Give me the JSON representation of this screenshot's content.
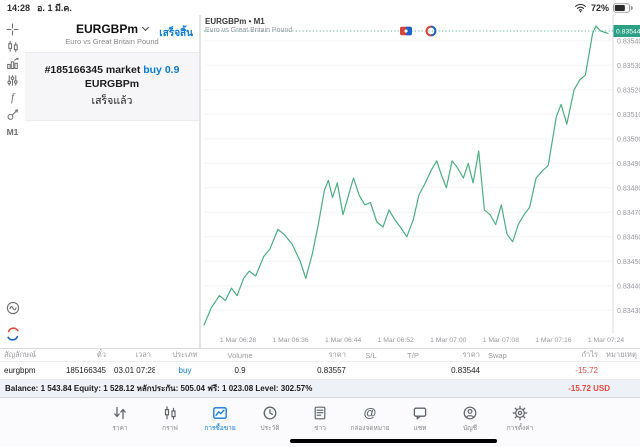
{
  "statusbar": {
    "time": "14:28",
    "date": "อ. 1 มี.ค.",
    "battery": "72%"
  },
  "sidebar": {
    "timeframe": "M1"
  },
  "panel": {
    "title": "EURGBPm",
    "subtitle": "Euro vs Great Britain Pound",
    "done_button": "เสร็จสิ้น",
    "order": {
      "line1_prefix": "#185166345 market ",
      "line1_action": "buy 0.9",
      "line2": "EURGBPm",
      "line3": "เสร็จแล้ว"
    }
  },
  "chart": {
    "symbol_period": "EURGBPm • M1",
    "subtitle": "Euro vs Great Britain Pound",
    "current_price_label": "0.83544"
  },
  "chart_data": {
    "type": "line",
    "title": "EURGBPm M1",
    "x_labels": [
      "1 Mar 06:28",
      "1 Mar 06:36",
      "1 Mar 06:44",
      "1 Mar 06:52",
      "1 Mar 07:00",
      "1 Mar 07:08",
      "1 Mar 07:16",
      "1 Mar 07:24"
    ],
    "y_ticks": [
      "0.83540",
      "0.83530",
      "0.83520",
      "0.83510",
      "0.83500",
      "0.83490",
      "0.83480",
      "0.83470",
      "0.83460",
      "0.83450",
      "0.83440",
      "0.83430"
    ],
    "current_price": 0.83544,
    "ylim": [
      0.83424,
      0.83547
    ],
    "line_color": "#4cae82",
    "badge_color": "#2aa184",
    "points": [
      [
        0.0,
        0.83424
      ],
      [
        0.018,
        0.83431
      ],
      [
        0.038,
        0.83436
      ],
      [
        0.053,
        0.83434
      ],
      [
        0.068,
        0.83439
      ],
      [
        0.082,
        0.83436
      ],
      [
        0.098,
        0.83443
      ],
      [
        0.112,
        0.83446
      ],
      [
        0.128,
        0.83444
      ],
      [
        0.148,
        0.83452
      ],
      [
        0.163,
        0.83455
      ],
      [
        0.183,
        0.83463
      ],
      [
        0.198,
        0.83461
      ],
      [
        0.218,
        0.83457
      ],
      [
        0.238,
        0.8345
      ],
      [
        0.252,
        0.83443
      ],
      [
        0.268,
        0.83453
      ],
      [
        0.283,
        0.83465
      ],
      [
        0.298,
        0.83479
      ],
      [
        0.308,
        0.83483
      ],
      [
        0.318,
        0.83476
      ],
      [
        0.33,
        0.83482
      ],
      [
        0.344,
        0.83469
      ],
      [
        0.358,
        0.83477
      ],
      [
        0.37,
        0.83484
      ],
      [
        0.384,
        0.83477
      ],
      [
        0.398,
        0.83473
      ],
      [
        0.412,
        0.83474
      ],
      [
        0.428,
        0.83466
      ],
      [
        0.443,
        0.83464
      ],
      [
        0.458,
        0.83471
      ],
      [
        0.472,
        0.83467
      ],
      [
        0.486,
        0.83464
      ],
      [
        0.502,
        0.8346
      ],
      [
        0.518,
        0.83467
      ],
      [
        0.532,
        0.83477
      ],
      [
        0.548,
        0.83482
      ],
      [
        0.562,
        0.83487
      ],
      [
        0.576,
        0.83491
      ],
      [
        0.588,
        0.83485
      ],
      [
        0.6,
        0.8348
      ],
      [
        0.614,
        0.83491
      ],
      [
        0.628,
        0.83488
      ],
      [
        0.642,
        0.83484
      ],
      [
        0.654,
        0.8349
      ],
      [
        0.666,
        0.83482
      ],
      [
        0.68,
        0.83495
      ],
      [
        0.694,
        0.83471
      ],
      [
        0.708,
        0.83469
      ],
      [
        0.722,
        0.83465
      ],
      [
        0.736,
        0.83473
      ],
      [
        0.75,
        0.83461
      ],
      [
        0.764,
        0.83458
      ],
      [
        0.778,
        0.83465
      ],
      [
        0.792,
        0.83469
      ],
      [
        0.806,
        0.83472
      ],
      [
        0.822,
        0.83484
      ],
      [
        0.838,
        0.83487
      ],
      [
        0.852,
        0.83489
      ],
      [
        0.872,
        0.83509
      ],
      [
        0.884,
        0.83514
      ],
      [
        0.898,
        0.83506
      ],
      [
        0.916,
        0.8352
      ],
      [
        0.93,
        0.83524
      ],
      [
        0.944,
        0.83526
      ],
      [
        0.962,
        0.83543
      ],
      [
        0.97,
        0.83546
      ],
      [
        0.982,
        0.83544
      ],
      [
        1.0,
        0.83543
      ]
    ]
  },
  "table": {
    "headers": [
      "สัญลักษณ์",
      "ตั๋ว",
      "เวลา",
      "ประเภท",
      "Volume",
      "ราคา",
      "S/L",
      "T/P",
      "ราคา",
      "Swap",
      "กำไร",
      "หมายเหตุ"
    ],
    "row": [
      "eurgbpm",
      "185166345",
      "03.01 07:28",
      "buy",
      "0.9",
      "0.83557",
      "",
      "",
      "0.83544",
      "",
      "-15.72",
      ""
    ]
  },
  "balance": {
    "text": "Balance: 1 543.84 Equity: 1 528.12 หลักประกัน: 505.04 ฟรี: 1 023.08 Level: 302.57%",
    "profit": "-15.72  USD"
  },
  "nav": {
    "items": [
      {
        "label": "ราคา"
      },
      {
        "label": "กราฟ"
      },
      {
        "label": "การซื้อขาย"
      },
      {
        "label": "ประวัติ"
      },
      {
        "label": "ข่าว"
      },
      {
        "label": "กล่องจดหมาย"
      },
      {
        "label": "แชท"
      },
      {
        "label": "บัญชี"
      },
      {
        "label": "การตั้งค่า"
      }
    ]
  },
  "colors": {
    "accent_blue": "#0a7bd8",
    "loss_red": "#e8483f",
    "line_green": "#4cae82",
    "badge_green": "#2aa184"
  }
}
